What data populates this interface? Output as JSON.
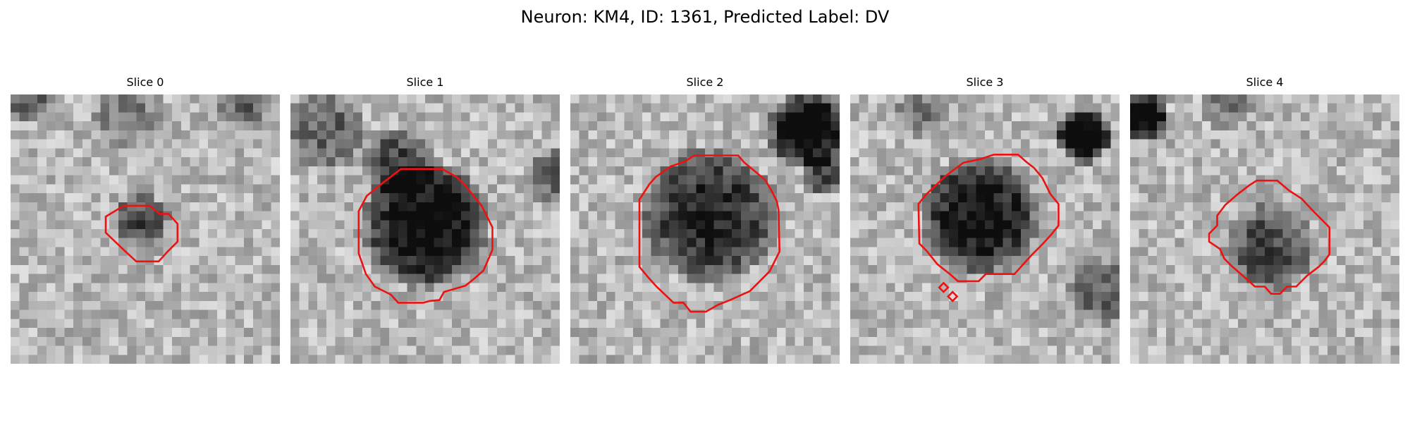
{
  "title": "Neuron: KM4, ID: 1361, Predicted Label: DV",
  "panels": [
    {
      "title": "Slice 0"
    },
    {
      "title": "Slice 1"
    },
    {
      "title": "Slice 2"
    },
    {
      "title": "Slice 3"
    },
    {
      "title": "Slice 4"
    }
  ],
  "colors": {
    "contour": "#ee1111",
    "colormap": "gray"
  }
}
